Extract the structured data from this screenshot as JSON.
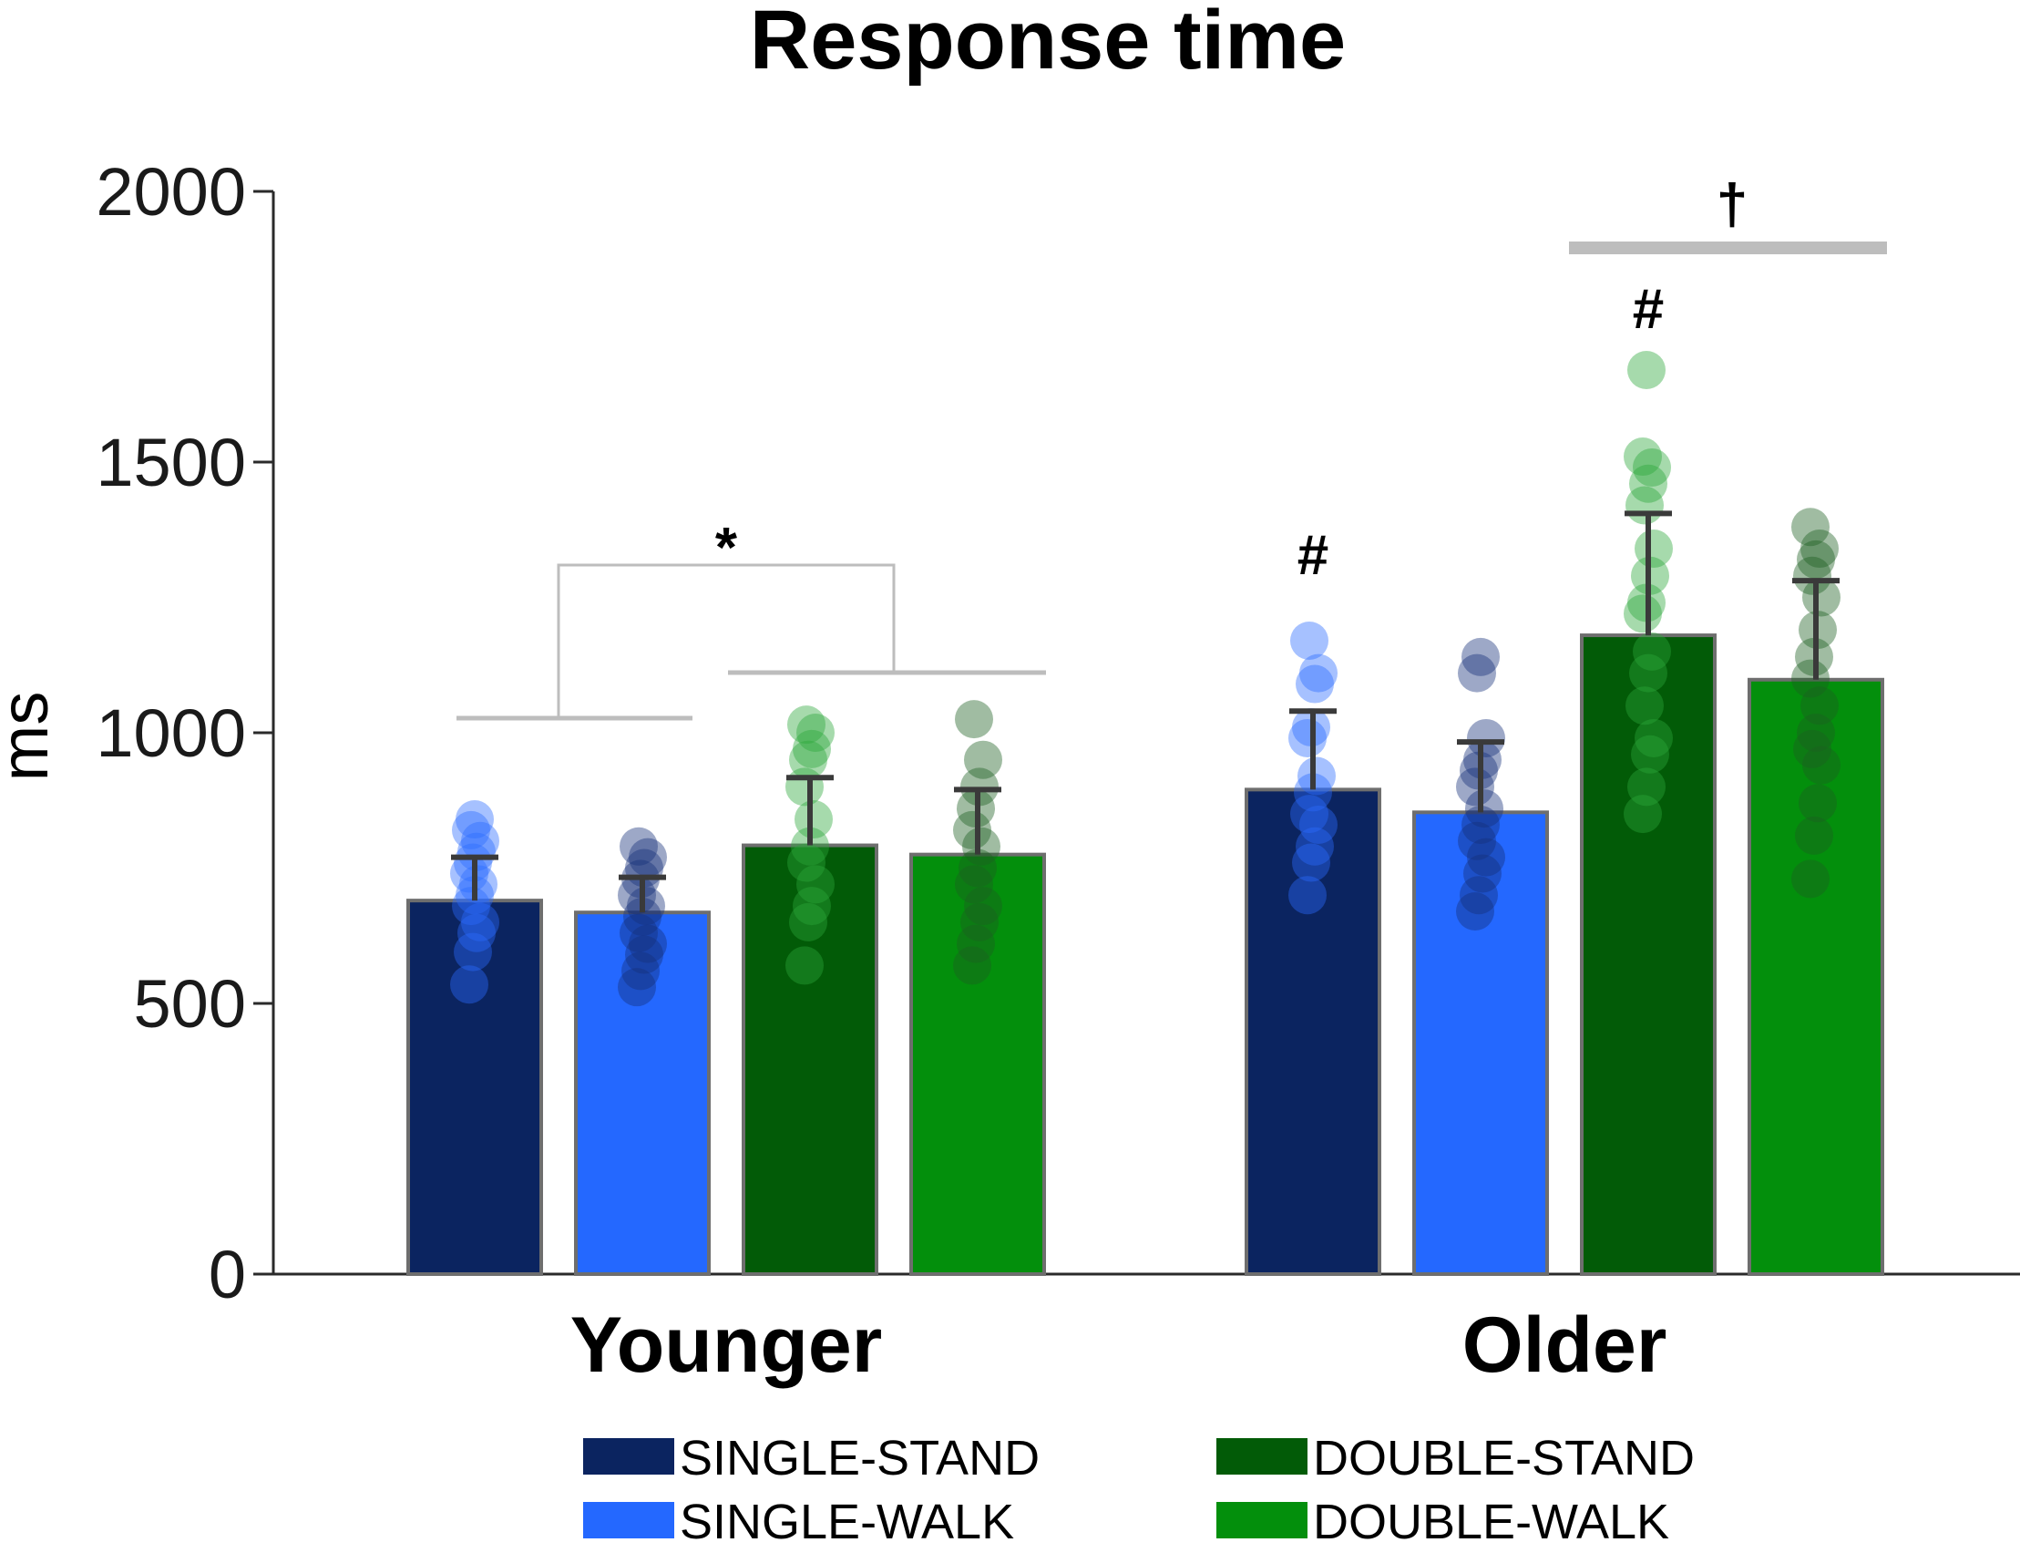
{
  "chart_data": {
    "type": "bar",
    "title": "Response time",
    "xlabel": "",
    "ylabel": "ms",
    "ylim": [
      0,
      2000
    ],
    "yticks": [
      0,
      500,
      1000,
      1500,
      2000
    ],
    "grid": false,
    "legend_position": "bottom",
    "categories": [
      "Younger",
      "Older"
    ],
    "series": [
      {
        "name": "SINGLE-STAND",
        "color": "#0b2460",
        "dot_color": "#2b6bff",
        "values": [
          690,
          895
        ],
        "errors": [
          80,
          145
        ],
        "points": [
          [
            535,
            595,
            630,
            650,
            680,
            700,
            720,
            740,
            760,
            780,
            800,
            820,
            840
          ],
          [
            700,
            760,
            790,
            830,
            850,
            890,
            920,
            990,
            1010,
            1090,
            1110,
            1170
          ]
        ]
      },
      {
        "name": "SINGLE-WALK",
        "color": "#2468ff",
        "dot_color": "#152f7a",
        "values": [
          668,
          853
        ],
        "errors": [
          65,
          130
        ],
        "points": [
          [
            530,
            560,
            590,
            610,
            630,
            660,
            680,
            700,
            730,
            750,
            770,
            790
          ],
          [
            670,
            700,
            740,
            770,
            800,
            830,
            860,
            900,
            930,
            950,
            990,
            1110,
            1140
          ]
        ]
      },
      {
        "name": "DOUBLE-STAND",
        "color": "#025b07",
        "dot_color": "#2aa83a",
        "values": [
          792,
          1180
        ],
        "errors": [
          125,
          225
        ],
        "points": [
          [
            570,
            650,
            680,
            720,
            760,
            790,
            840,
            900,
            950,
            970,
            1000,
            1015
          ],
          [
            850,
            900,
            960,
            990,
            1050,
            1110,
            1150,
            1220,
            1240,
            1290,
            1340,
            1420,
            1460,
            1490,
            1510,
            1670
          ]
        ]
      },
      {
        "name": "DOUBLE-WALK",
        "color": "#038f0c",
        "dot_color": "#1c5f21",
        "values": [
          775,
          1098
        ],
        "errors": [
          120,
          183
        ],
        "points": [
          [
            570,
            610,
            650,
            680,
            720,
            750,
            790,
            820,
            860,
            900,
            950,
            1025
          ],
          [
            730,
            810,
            870,
            940,
            970,
            1000,
            1050,
            1100,
            1140,
            1190,
            1250,
            1290,
            1320,
            1340,
            1380
          ]
        ]
      }
    ],
    "annotations": {
      "younger_star": "*",
      "older_single_hash": "#",
      "older_double_hash": "#",
      "older_dagger": "†"
    }
  }
}
